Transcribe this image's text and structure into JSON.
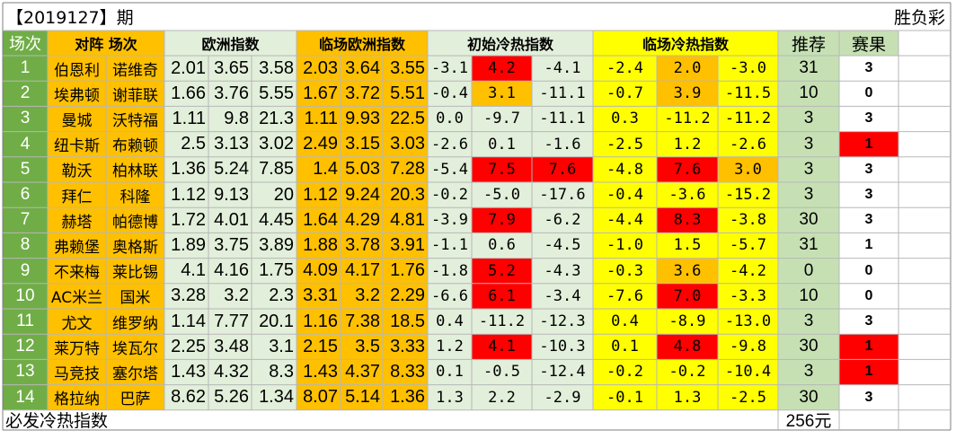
{
  "title": "【2019127】期",
  "game_type": "胜负彩",
  "headers": {
    "index": "场次",
    "matchup": "对阵 场次",
    "euro": "欧洲指数",
    "live_euro": "临场欧洲指数",
    "init_heat": "初始冷热指数",
    "live_heat": "临场冷热指数",
    "recommend": "推荐",
    "result": "赛果"
  },
  "colors": {
    "index_bg": "#70ad47",
    "team_bg": "#ffc000",
    "euro_bg": "#e2efda",
    "live_euro_bg": "#ffc000",
    "init_heat_bg": "#e2efda",
    "live_heat_bg": "#ffff00",
    "recommend_bg": "#c6e0b4",
    "hot_red": "#ff0000",
    "warm_orange": "#ffc000",
    "grid": "#b7b7b7"
  },
  "rows": [
    {
      "idx": "1",
      "home": "伯恩利",
      "away": "诺维奇",
      "euro": [
        "2.01",
        "3.65",
        "3.58"
      ],
      "live_euro": [
        "2.03",
        "3.64",
        "3.55"
      ],
      "init": [
        "-3.1",
        "4.2",
        "-4.1"
      ],
      "init_hl": [
        "",
        "red",
        ""
      ],
      "live": [
        "-2.4",
        "2.0",
        "-3.0"
      ],
      "live_hl": [
        "",
        "orange",
        ""
      ],
      "rec": "31",
      "result": "3",
      "result_hl": ""
    },
    {
      "idx": "2",
      "home": "埃弗顿",
      "away": "谢菲联",
      "euro": [
        "1.66",
        "3.76",
        "5.55"
      ],
      "live_euro": [
        "1.67",
        "3.72",
        "5.51"
      ],
      "init": [
        "-0.4",
        "3.1",
        "-11.1"
      ],
      "init_hl": [
        "",
        "orange",
        ""
      ],
      "live": [
        "-0.7",
        "3.9",
        "-11.5"
      ],
      "live_hl": [
        "",
        "orange",
        ""
      ],
      "rec": "10",
      "result": "0",
      "result_hl": ""
    },
    {
      "idx": "3",
      "home": "曼城",
      "away": "沃特福",
      "euro": [
        "1.11",
        "9.8",
        "21.3"
      ],
      "live_euro": [
        "1.11",
        "9.93",
        "22.5"
      ],
      "init": [
        "0.0",
        "-9.7",
        "-11.1"
      ],
      "init_hl": [
        "",
        "",
        ""
      ],
      "live": [
        "0.3",
        "-11.2",
        "-11.2"
      ],
      "live_hl": [
        "",
        "",
        ""
      ],
      "rec": "3",
      "result": "3",
      "result_hl": ""
    },
    {
      "idx": "4",
      "home": "纽卡斯",
      "away": "布赖顿",
      "euro": [
        "2.5",
        "3.13",
        "3.02"
      ],
      "live_euro": [
        "2.49",
        "3.15",
        "3.03"
      ],
      "init": [
        "-2.6",
        "0.1",
        "-1.6"
      ],
      "init_hl": [
        "",
        "",
        ""
      ],
      "live": [
        "-2.5",
        "1.2",
        "-2.6"
      ],
      "live_hl": [
        "",
        "",
        ""
      ],
      "rec": "3",
      "result": "1",
      "result_hl": "red"
    },
    {
      "idx": "5",
      "home": "勒沃",
      "away": "柏林联",
      "euro": [
        "1.36",
        "5.24",
        "7.85"
      ],
      "live_euro": [
        "1.4",
        "5.03",
        "7.28"
      ],
      "init": [
        "-5.4",
        "7.5",
        "7.6"
      ],
      "init_hl": [
        "",
        "red",
        "red"
      ],
      "live": [
        "-4.8",
        "7.6",
        "3.0"
      ],
      "live_hl": [
        "",
        "red",
        "orange"
      ],
      "rec": "3",
      "result": "3",
      "result_hl": ""
    },
    {
      "idx": "6",
      "home": "拜仁",
      "away": "科隆",
      "euro": [
        "1.12",
        "9.13",
        "20"
      ],
      "live_euro": [
        "1.12",
        "9.24",
        "20.3"
      ],
      "init": [
        "-0.2",
        "-5.0",
        "-17.6"
      ],
      "init_hl": [
        "",
        "",
        ""
      ],
      "live": [
        "-0.4",
        "-3.6",
        "-15.2"
      ],
      "live_hl": [
        "",
        "",
        ""
      ],
      "rec": "3",
      "result": "3",
      "result_hl": ""
    },
    {
      "idx": "7",
      "home": "赫塔",
      "away": "帕德博",
      "euro": [
        "1.72",
        "4.01",
        "4.45"
      ],
      "live_euro": [
        "1.64",
        "4.29",
        "4.81"
      ],
      "init": [
        "-3.9",
        "7.9",
        "-6.2"
      ],
      "init_hl": [
        "",
        "red",
        ""
      ],
      "live": [
        "-4.4",
        "8.3",
        "-3.8"
      ],
      "live_hl": [
        "",
        "red",
        ""
      ],
      "rec": "30",
      "result": "3",
      "result_hl": ""
    },
    {
      "idx": "8",
      "home": "弗赖堡",
      "away": "奥格斯",
      "euro": [
        "1.89",
        "3.75",
        "3.89"
      ],
      "live_euro": [
        "1.88",
        "3.78",
        "3.91"
      ],
      "init": [
        "-1.1",
        "0.6",
        "-4.5"
      ],
      "init_hl": [
        "",
        "",
        ""
      ],
      "live": [
        "-1.0",
        "1.5",
        "-5.7"
      ],
      "live_hl": [
        "",
        "",
        ""
      ],
      "rec": "31",
      "result": "1",
      "result_hl": ""
    },
    {
      "idx": "9",
      "home": "不来梅",
      "away": "莱比锡",
      "euro": [
        "4.1",
        "4.16",
        "1.75"
      ],
      "live_euro": [
        "4.09",
        "4.17",
        "1.76"
      ],
      "init": [
        "-1.8",
        "5.2",
        "-4.3"
      ],
      "init_hl": [
        "",
        "red",
        ""
      ],
      "live": [
        "-0.3",
        "3.6",
        "-4.2"
      ],
      "live_hl": [
        "",
        "orange",
        ""
      ],
      "rec": "0",
      "result": "0",
      "result_hl": ""
    },
    {
      "idx": "10",
      "home": "AC米兰",
      "away": "国米",
      "euro": [
        "3.28",
        "3.2",
        "2.3"
      ],
      "live_euro": [
        "3.31",
        "3.2",
        "2.29"
      ],
      "init": [
        "-6.6",
        "6.1",
        "-3.4"
      ],
      "init_hl": [
        "",
        "red",
        ""
      ],
      "live": [
        "-7.6",
        "7.0",
        "-3.3"
      ],
      "live_hl": [
        "",
        "red",
        ""
      ],
      "rec": "10",
      "result": "0",
      "result_hl": ""
    },
    {
      "idx": "11",
      "home": "尤文",
      "away": "维罗纳",
      "euro": [
        "1.14",
        "7.77",
        "20.1"
      ],
      "live_euro": [
        "1.16",
        "7.38",
        "18.5"
      ],
      "init": [
        "0.4",
        "-11.2",
        "-12.3"
      ],
      "init_hl": [
        "",
        "",
        ""
      ],
      "live": [
        "0.4",
        "-8.9",
        "-13.0"
      ],
      "live_hl": [
        "",
        "",
        ""
      ],
      "rec": "3",
      "result": "3",
      "result_hl": ""
    },
    {
      "idx": "12",
      "home": "莱万特",
      "away": "埃瓦尔",
      "euro": [
        "2.25",
        "3.48",
        "3.1"
      ],
      "live_euro": [
        "2.15",
        "3.5",
        "3.33"
      ],
      "init": [
        "1.2",
        "4.1",
        "-10.3"
      ],
      "init_hl": [
        "",
        "red",
        ""
      ],
      "live": [
        "0.1",
        "4.8",
        "-9.8"
      ],
      "live_hl": [
        "",
        "red",
        ""
      ],
      "rec": "30",
      "result": "1",
      "result_hl": "red"
    },
    {
      "idx": "13",
      "home": "马竞技",
      "away": "塞尔塔",
      "euro": [
        "1.43",
        "4.32",
        "8.3"
      ],
      "live_euro": [
        "1.43",
        "4.37",
        "8.33"
      ],
      "init": [
        "0.1",
        "-0.5",
        "-12.4"
      ],
      "init_hl": [
        "",
        "",
        ""
      ],
      "live": [
        "-0.2",
        "-0.2",
        "-10.4"
      ],
      "live_hl": [
        "",
        "",
        ""
      ],
      "rec": "3",
      "result": "1",
      "result_hl": "red"
    },
    {
      "idx": "14",
      "home": "格拉纳",
      "away": "巴萨",
      "euro": [
        "8.62",
        "5.26",
        "1.34"
      ],
      "live_euro": [
        "8.07",
        "5.14",
        "1.36"
      ],
      "init": [
        "1.3",
        "2.2",
        "-2.9"
      ],
      "init_hl": [
        "",
        "",
        ""
      ],
      "live": [
        "-0.1",
        "1.3",
        "-2.5"
      ],
      "live_hl": [
        "",
        "",
        ""
      ],
      "rec": "30",
      "result": "3",
      "result_hl": ""
    }
  ],
  "footer": {
    "label": "必发冷热指数",
    "price": "256元"
  }
}
